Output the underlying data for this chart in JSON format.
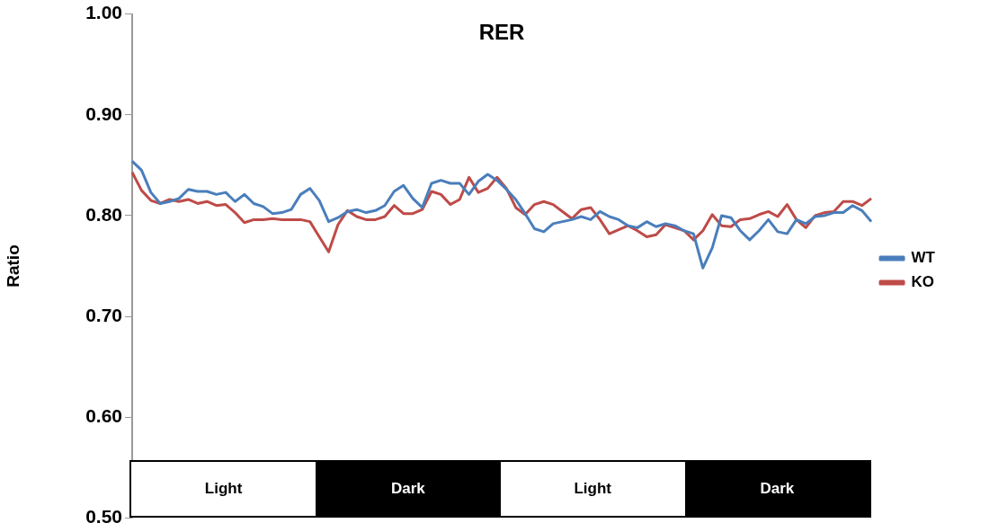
{
  "chart_data": {
    "type": "line",
    "title": "RER",
    "ylabel": "Ratio",
    "categories": [
      null,
      null,
      null,
      null,
      null,
      null,
      null,
      null,
      null,
      null,
      null,
      null,
      null,
      null,
      null,
      null,
      null,
      null,
      null,
      null,
      null,
      null,
      null,
      null,
      null,
      null,
      null,
      null,
      null,
      null,
      null,
      null,
      null,
      null,
      null,
      null,
      null,
      null,
      null,
      null,
      null,
      null,
      null,
      null,
      null,
      null,
      null,
      null,
      null,
      null,
      null,
      null,
      null,
      null,
      null,
      null,
      null,
      null,
      null,
      null,
      null,
      null,
      null,
      null,
      null,
      null,
      null,
      null,
      null,
      null,
      null,
      null,
      null,
      null,
      null,
      null,
      null,
      null,
      null,
      null
    ],
    "series": [
      {
        "name": "WT",
        "color": "#4a7ebb",
        "values": [
          0.854,
          0.845,
          0.823,
          0.812,
          0.814,
          0.817,
          0.826,
          0.824,
          0.824,
          0.821,
          0.823,
          0.814,
          0.821,
          0.812,
          0.809,
          0.802,
          0.803,
          0.806,
          0.821,
          0.827,
          0.815,
          0.794,
          0.798,
          0.804,
          0.806,
          0.803,
          0.805,
          0.81,
          0.824,
          0.83,
          0.817,
          0.808,
          0.832,
          0.835,
          0.832,
          0.832,
          0.821,
          0.834,
          0.841,
          0.835,
          0.826,
          0.816,
          0.802,
          0.787,
          0.784,
          0.792,
          0.794,
          0.796,
          0.799,
          0.796,
          0.804,
          0.799,
          0.796,
          0.79,
          0.788,
          0.794,
          0.789,
          0.792,
          0.79,
          0.785,
          0.782,
          0.748,
          0.768,
          0.8,
          0.798,
          0.785,
          0.776,
          0.785,
          0.796,
          0.784,
          0.782,
          0.796,
          0.792,
          0.799,
          0.8,
          0.803,
          0.803,
          0.81,
          0.805,
          0.794
        ]
      },
      {
        "name": "KO",
        "color": "#be4b48",
        "values": [
          0.843,
          0.825,
          0.815,
          0.812,
          0.816,
          0.814,
          0.816,
          0.812,
          0.814,
          0.81,
          0.811,
          0.803,
          0.793,
          0.796,
          0.796,
          0.797,
          0.796,
          0.796,
          0.796,
          0.794,
          0.779,
          0.764,
          0.791,
          0.805,
          0.799,
          0.796,
          0.796,
          0.799,
          0.81,
          0.802,
          0.802,
          0.806,
          0.824,
          0.821,
          0.811,
          0.816,
          0.838,
          0.823,
          0.827,
          0.838,
          0.827,
          0.808,
          0.801,
          0.811,
          0.814,
          0.811,
          0.804,
          0.797,
          0.806,
          0.808,
          0.796,
          0.782,
          0.786,
          0.79,
          0.785,
          0.779,
          0.781,
          0.791,
          0.788,
          0.785,
          0.776,
          0.785,
          0.801,
          0.79,
          0.789,
          0.796,
          0.797,
          0.801,
          0.804,
          0.799,
          0.811,
          0.796,
          0.788,
          0.8,
          0.803,
          0.804,
          0.814,
          0.814,
          0.81,
          0.817
        ]
      }
    ],
    "ylim": [
      0.5,
      1.0
    ],
    "yticks": [
      {
        "value": 0.5,
        "label": "0.50"
      },
      {
        "value": 0.6,
        "label": "0.60"
      },
      {
        "value": 0.7,
        "label": "0.70"
      },
      {
        "value": 0.8,
        "label": "0.80"
      },
      {
        "value": 0.9,
        "label": "0.90"
      },
      {
        "value": 1.0,
        "label": "1.00"
      }
    ],
    "legend": "right",
    "annotations": [
      "Light",
      "Dark",
      "Light",
      "Dark"
    ]
  }
}
